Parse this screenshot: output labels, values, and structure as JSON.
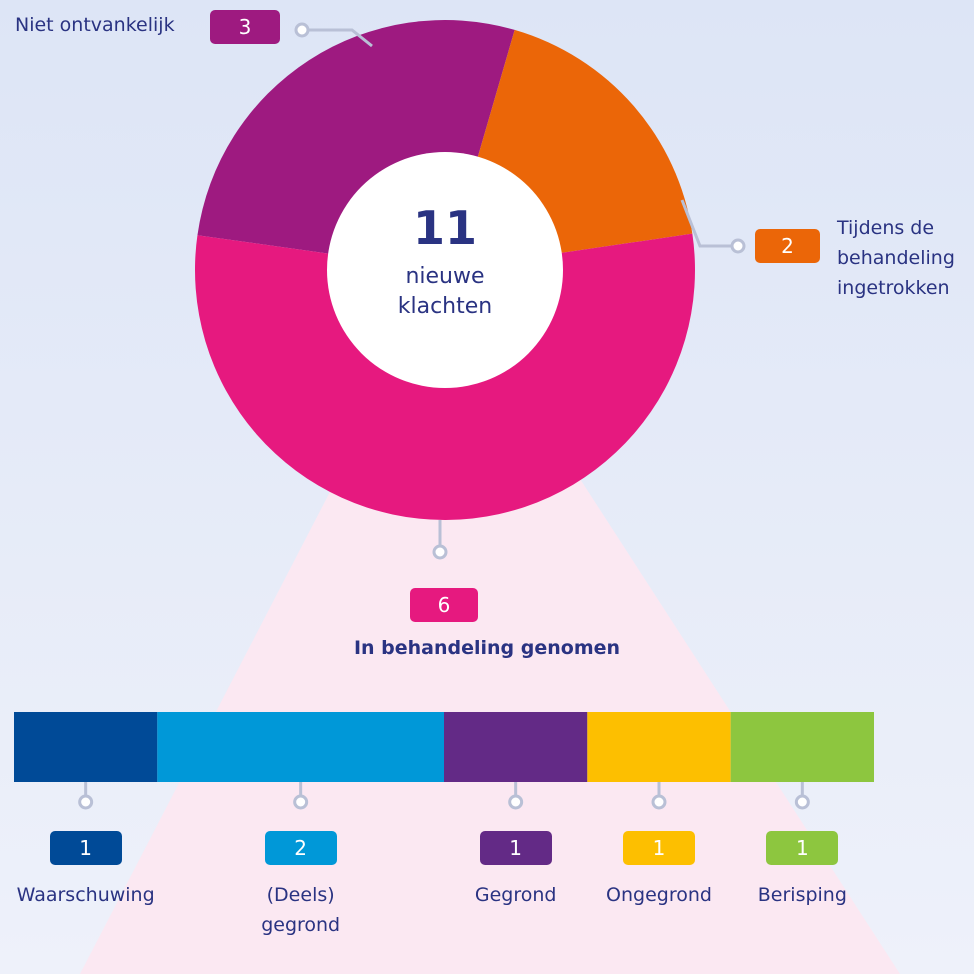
{
  "chart_data": [
    {
      "type": "pie",
      "donut": true,
      "total": 11,
      "center_label": "nieuwe klachten",
      "categories": [
        "Niet ontvankelijk",
        "Tijdens de behandeling ingetrokken",
        "In behandeling genomen"
      ],
      "values": [
        3,
        2,
        6
      ],
      "colors": [
        "#9e1a80",
        "#eb6608",
        "#e6197f"
      ]
    },
    {
      "type": "bar",
      "orientation": "horizontal",
      "stacked": true,
      "categories": [
        "Waarschuwing",
        "(Deels) gegrond",
        "Gegrond",
        "Ongegrond",
        "Berisping"
      ],
      "values": [
        1,
        2,
        1,
        1,
        1
      ],
      "colors": [
        "#004a97",
        "#0098d8",
        "#632a86",
        "#fdbf00",
        "#8dc63f"
      ]
    }
  ]
}
